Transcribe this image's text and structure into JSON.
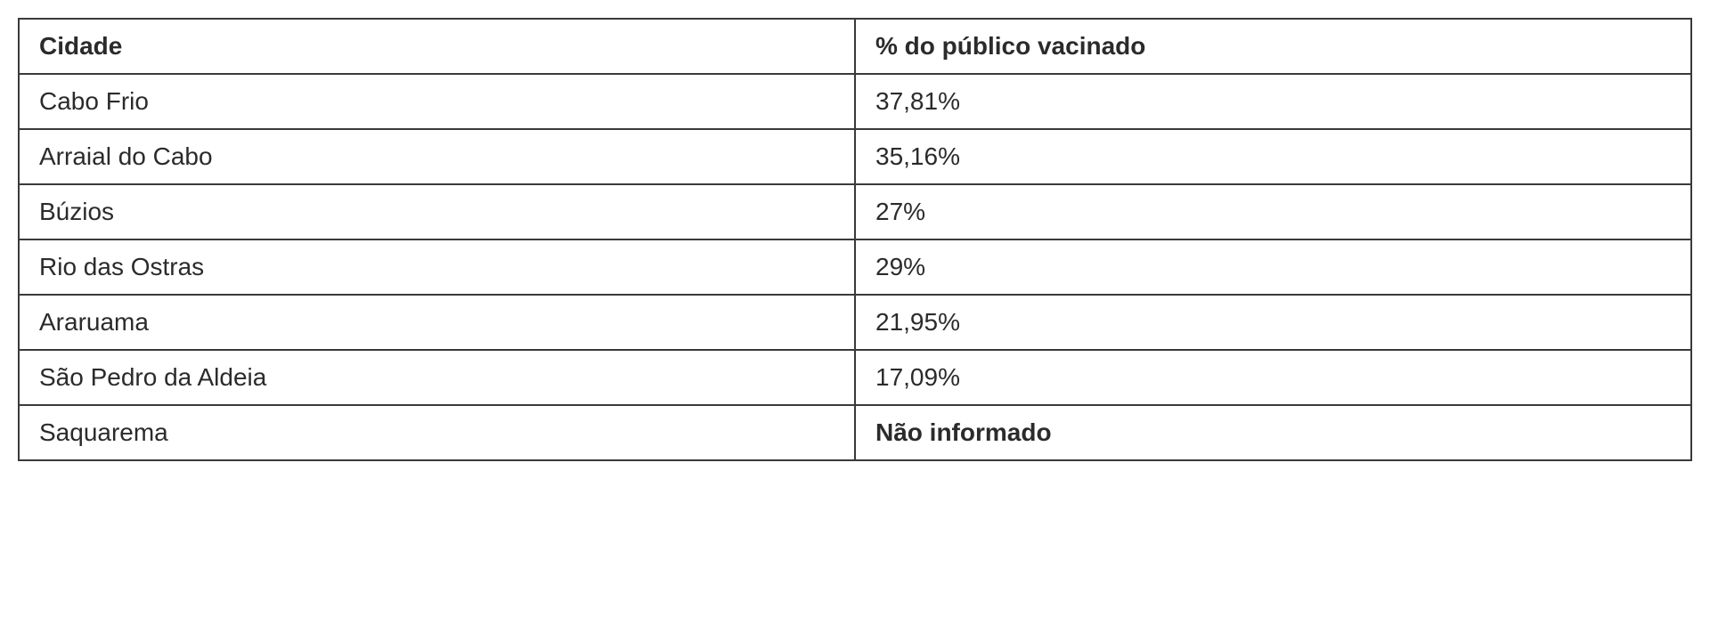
{
  "table": {
    "columns": [
      {
        "label": "Cidade",
        "bold": true
      },
      {
        "label": "% do público vacinado",
        "bold": true
      }
    ],
    "rows": [
      {
        "city": "Cabo Frio",
        "pct": "37,81%",
        "pct_bold": false
      },
      {
        "city": "Arraial do Cabo",
        "pct": "35,16%",
        "pct_bold": false
      },
      {
        "city": "Búzios",
        "pct": "27%",
        "pct_bold": false
      },
      {
        "city": "Rio das Ostras",
        "pct": "29%",
        "pct_bold": false
      },
      {
        "city": "Araruama",
        "pct": "21,95%",
        "pct_bold": false
      },
      {
        "city": "São Pedro da Aldeia",
        "pct": "17,09%",
        "pct_bold": false
      },
      {
        "city": "Saquarema",
        "pct": "Não informado",
        "pct_bold": true
      }
    ],
    "border_color": "#3a3a3a",
    "text_color": "#2b2b2b",
    "background_color": "#ffffff",
    "font_family": "Verdana",
    "font_size_pt": 21,
    "column_widths_pct": [
      50,
      50
    ]
  }
}
